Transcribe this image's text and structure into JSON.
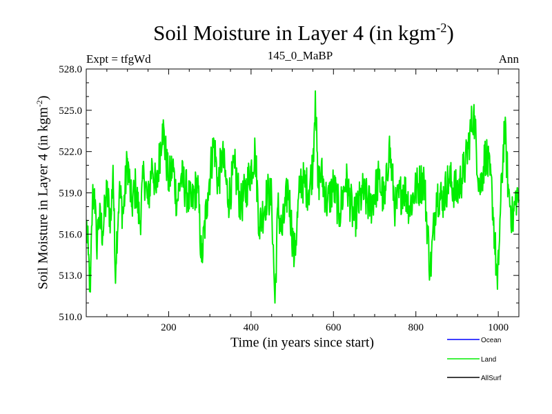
{
  "chart_data": {
    "type": "line",
    "title": {
      "text": "Soil Moisture in Layer 4 (in kgm",
      "sup": "-2",
      "tail": ")"
    },
    "subtitle": "145_0_MaBP",
    "left_label": "Expt = tfgWd",
    "right_label": "Ann",
    "xlabel": "Time (in years since start)",
    "ylabel": {
      "text": "Soil Moisture in Layer 4 (in kgm",
      "sup": "-2",
      "tail": ")"
    },
    "xlim": [
      0,
      1050
    ],
    "ylim": [
      510,
      528
    ],
    "xticks": [
      200,
      400,
      600,
      800,
      1000
    ],
    "xtick_labels": [
      "200",
      "400",
      "600",
      "800",
      "1000"
    ],
    "yticks": [
      510,
      513,
      516,
      519,
      522,
      525,
      528
    ],
    "ytick_labels": [
      "510.0",
      "513.0",
      "516.0",
      "519.0",
      "522.0",
      "525.0",
      "528.0"
    ],
    "legend": [
      {
        "name": "Ocean",
        "color": "#0000ff"
      },
      {
        "name": "Land",
        "color": "#00ee00"
      },
      {
        "name": "AllSurf",
        "color": "#000000"
      }
    ],
    "series": [
      {
        "name": "Land",
        "color": "#00ee00",
        "anchors": [
          [
            0,
            517.0
          ],
          [
            5,
            514.5
          ],
          [
            10,
            511.8
          ],
          [
            15,
            518.5
          ],
          [
            20,
            519.3
          ],
          [
            25,
            515.0
          ],
          [
            30,
            517.2
          ],
          [
            40,
            516.2
          ],
          [
            50,
            519.0
          ],
          [
            60,
            517.0
          ],
          [
            65,
            521.0
          ],
          [
            70,
            513.4
          ],
          [
            80,
            519.0
          ],
          [
            90,
            517.5
          ],
          [
            100,
            521.5
          ],
          [
            110,
            518.0
          ],
          [
            120,
            519.5
          ],
          [
            130,
            516.8
          ],
          [
            140,
            520.5
          ],
          [
            150,
            518.2
          ],
          [
            160,
            521.2
          ],
          [
            170,
            519.0
          ],
          [
            185,
            524.0
          ],
          [
            200,
            519.8
          ],
          [
            210,
            521.0
          ],
          [
            220,
            518.3
          ],
          [
            230,
            520.2
          ],
          [
            245,
            519.0
          ],
          [
            255,
            518.0
          ],
          [
            270,
            519.8
          ],
          [
            280,
            514.0
          ],
          [
            295,
            519.0
          ],
          [
            310,
            522.8
          ],
          [
            320,
            519.5
          ],
          [
            330,
            521.8
          ],
          [
            345,
            518.5
          ],
          [
            360,
            520.8
          ],
          [
            375,
            518.0
          ],
          [
            390,
            519.5
          ],
          [
            410,
            522.0
          ],
          [
            420,
            516.5
          ],
          [
            440,
            519.0
          ],
          [
            450,
            518.5
          ],
          [
            458,
            511.0
          ],
          [
            465,
            518.0
          ],
          [
            475,
            516.0
          ],
          [
            490,
            519.5
          ],
          [
            505,
            514.2
          ],
          [
            520,
            520.0
          ],
          [
            540,
            519.2
          ],
          [
            550,
            521.0
          ],
          [
            556,
            526.4
          ],
          [
            562,
            519.5
          ],
          [
            570,
            520.5
          ],
          [
            585,
            518.2
          ],
          [
            600,
            519.5
          ],
          [
            615,
            517.5
          ],
          [
            630,
            520.0
          ],
          [
            650,
            517.0
          ],
          [
            670,
            519.0
          ],
          [
            690,
            518.0
          ],
          [
            710,
            520.0
          ],
          [
            725,
            518.2
          ],
          [
            735,
            522.5
          ],
          [
            750,
            517.8
          ],
          [
            770,
            519.5
          ],
          [
            785,
            518.0
          ],
          [
            800,
            519.3
          ],
          [
            820,
            520.0
          ],
          [
            835,
            513.2
          ],
          [
            850,
            519.0
          ],
          [
            865,
            518.5
          ],
          [
            880,
            520.0
          ],
          [
            900,
            519.0
          ],
          [
            920,
            521.0
          ],
          [
            940,
            524.9
          ],
          [
            955,
            519.2
          ],
          [
            970,
            522.0
          ],
          [
            985,
            519.0
          ],
          [
            998,
            512.0
          ],
          [
            1005,
            517.5
          ],
          [
            1015,
            524.0
          ],
          [
            1025,
            519.0
          ],
          [
            1035,
            517.0
          ],
          [
            1045,
            519.0
          ],
          [
            1050,
            518.5
          ]
        ]
      }
    ]
  }
}
